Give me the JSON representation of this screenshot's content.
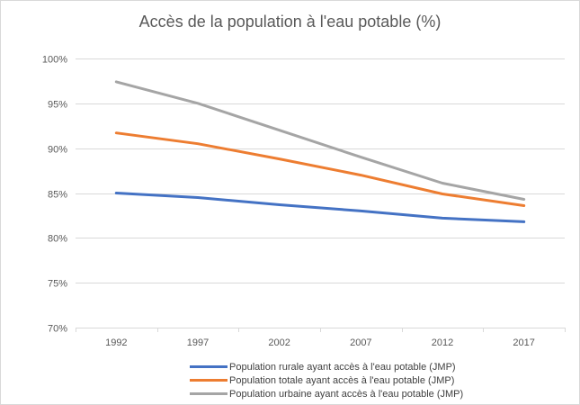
{
  "chart_data": {
    "type": "line",
    "title": "Accès de la population à l'eau potable (%)",
    "xlabel": "",
    "ylabel": "",
    "categories": [
      "1992",
      "1997",
      "2002",
      "2007",
      "2012",
      "2017"
    ],
    "ylim": [
      70,
      100
    ],
    "yticks": [
      100,
      95,
      90,
      85,
      80,
      75,
      70
    ],
    "ytick_labels": [
      "100%",
      "95%",
      "90%",
      "85%",
      "80%",
      "75%",
      "70%"
    ],
    "grid": true,
    "legend_position": "bottom",
    "series": [
      {
        "name": "Population rurale ayant accès à l'eau potable (JMP)",
        "color": "#4472c4",
        "values": [
          85.0,
          84.5,
          83.7,
          83.0,
          82.2,
          81.8
        ]
      },
      {
        "name": "Population totale ayant accès à l'eau potable (JMP)",
        "color": "#ed7d31",
        "values": [
          91.7,
          90.5,
          88.8,
          87.0,
          84.9,
          83.6
        ]
      },
      {
        "name": "Population urbaine ayant accès à l'eau potable (JMP)",
        "color": "#a5a5a5",
        "values": [
          97.4,
          95.0,
          92.0,
          89.0,
          86.1,
          84.3
        ]
      }
    ]
  }
}
